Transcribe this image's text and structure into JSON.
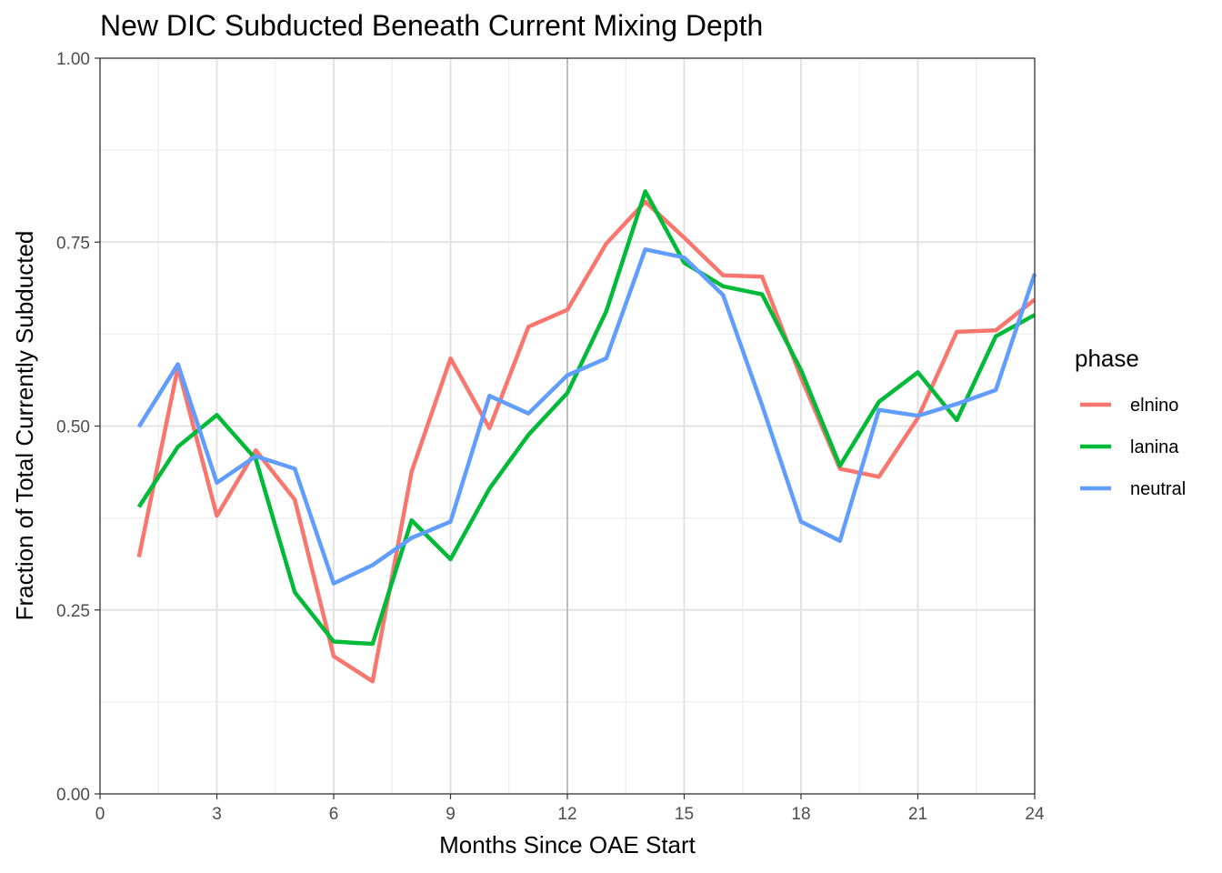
{
  "chart_data": {
    "type": "line",
    "title": "New DIC Subducted Beneath Current Mixing Depth",
    "xlabel": "Months Since OAE Start",
    "ylabel": "Fraction of Total Currently Subducted",
    "xlim": [
      0,
      24
    ],
    "ylim": [
      0,
      1
    ],
    "x_ticks": [
      "0",
      "3",
      "6",
      "9",
      "12",
      "15",
      "18",
      "21",
      "24"
    ],
    "y_ticks": [
      "0.00",
      "0.25",
      "0.50",
      "0.75",
      "1.00"
    ],
    "x_tick_values": [
      0,
      3,
      6,
      9,
      12,
      15,
      18,
      21,
      24
    ],
    "y_tick_values": [
      0,
      0.25,
      0.5,
      0.75,
      1.0
    ],
    "grid": true,
    "vline_x": 12,
    "legend_title": "phase",
    "legend_position": "right",
    "x": [
      1,
      2,
      3,
      4,
      5,
      6,
      7,
      8,
      9,
      10,
      11,
      12,
      13,
      14,
      15,
      16,
      17,
      18,
      19,
      20,
      21,
      22,
      23,
      24
    ],
    "series": [
      {
        "name": "elnino",
        "color": "#F8766D",
        "values": [
          0.322,
          0.58,
          0.378,
          0.467,
          0.4,
          0.187,
          0.153,
          0.438,
          0.592,
          0.497,
          0.635,
          0.658,
          0.748,
          0.805,
          0.756,
          0.705,
          0.703,
          0.566,
          0.442,
          0.431,
          0.511,
          0.628,
          0.63,
          0.672
        ]
      },
      {
        "name": "lanina",
        "color": "#00BA38",
        "values": [
          0.39,
          0.472,
          0.515,
          0.455,
          0.274,
          0.207,
          0.204,
          0.372,
          0.319,
          0.415,
          0.488,
          0.545,
          0.656,
          0.819,
          0.722,
          0.69,
          0.679,
          0.576,
          0.446,
          0.533,
          0.573,
          0.508,
          0.622,
          0.651
        ]
      },
      {
        "name": "neutral",
        "color": "#619CFF",
        "values": [
          0.499,
          0.584,
          0.423,
          0.459,
          0.442,
          0.286,
          0.311,
          0.348,
          0.37,
          0.541,
          0.517,
          0.569,
          0.592,
          0.74,
          0.729,
          0.678,
          0.528,
          0.37,
          0.344,
          0.522,
          0.514,
          0.53,
          0.549,
          0.707
        ]
      }
    ]
  }
}
